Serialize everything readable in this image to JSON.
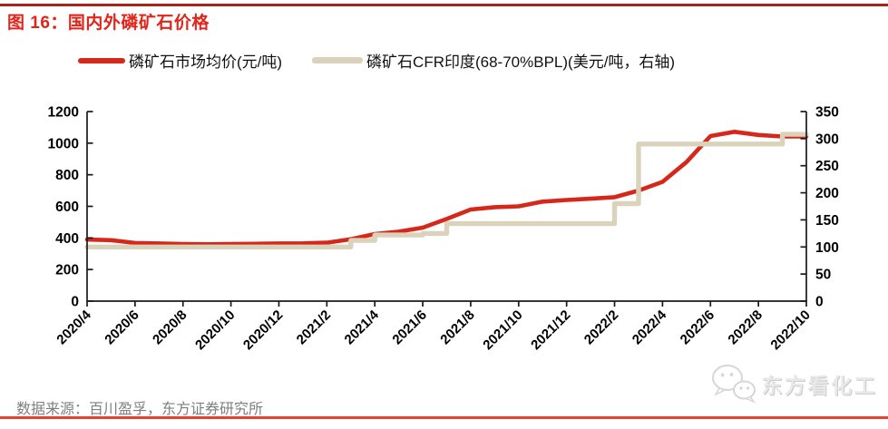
{
  "header": {
    "figure_label": "图 16：国内外磷矿石价格"
  },
  "legend": {
    "items": [
      {
        "label": "磷矿石市场均价(元/吨)"
      },
      {
        "label": "磷矿石CFR印度(68-70%BPL)(美元/吨，右轴)"
      }
    ]
  },
  "footer": {
    "source": "数据来源：百川盈孚，东方证券研究所"
  },
  "watermark": {
    "text": "东方看化工",
    "icon": "wechat-icon"
  },
  "colors": {
    "title_red": "#E1251B",
    "top_rule": "#A8241B",
    "bottom_rule": "#E8422E",
    "axis": "#1A1A1A",
    "source_text": "#7F7F7F",
    "watermark_text": "#E9E9E9",
    "series_red": "#D5281B",
    "series_beige": "#DAD2BB"
  },
  "chart_data": {
    "type": "line",
    "title": "国内外磷矿石价格",
    "months": [
      "2020/4",
      "2020/5",
      "2020/6",
      "2020/7",
      "2020/8",
      "2020/9",
      "2020/10",
      "2020/11",
      "2020/12",
      "2021/1",
      "2021/2",
      "2021/3",
      "2021/4",
      "2021/5",
      "2021/6",
      "2021/7",
      "2021/8",
      "2021/9",
      "2021/10",
      "2021/11",
      "2021/12",
      "2022/1",
      "2022/2",
      "2022/3",
      "2022/4",
      "2022/5",
      "2022/6",
      "2022/7",
      "2022/8",
      "2022/9",
      "2022/10"
    ],
    "x_ticks_every_months": 2,
    "series": [
      {
        "name": "磷矿石市场均价(元/吨)",
        "axis": "left",
        "color": "#D5281B",
        "style": "line",
        "values": [
          390,
          386,
          368,
          365,
          362,
          360,
          362,
          363,
          365,
          366,
          370,
          392,
          425,
          440,
          465,
          520,
          580,
          595,
          600,
          630,
          640,
          648,
          658,
          700,
          755,
          880,
          1045,
          1072,
          1052,
          1042,
          1042
        ]
      },
      {
        "name": "磷矿石CFR印度(68-70%BPL)(美元/吨，右轴)",
        "axis": "right",
        "color": "#DAD2BB",
        "style": "step",
        "values": [
          100,
          100,
          100,
          100,
          100,
          100,
          100,
          100,
          100,
          100,
          100,
          112,
          122,
          122,
          125,
          143,
          143,
          143,
          143,
          143,
          143,
          143,
          180,
          290,
          290,
          290,
          290,
          290,
          290,
          308,
          308
        ]
      }
    ],
    "left_axis": {
      "min": 0,
      "max": 1200,
      "step": 200
    },
    "right_axis": {
      "min": 0,
      "max": 350,
      "step": 50
    },
    "grid": false,
    "legend_position": "top"
  }
}
